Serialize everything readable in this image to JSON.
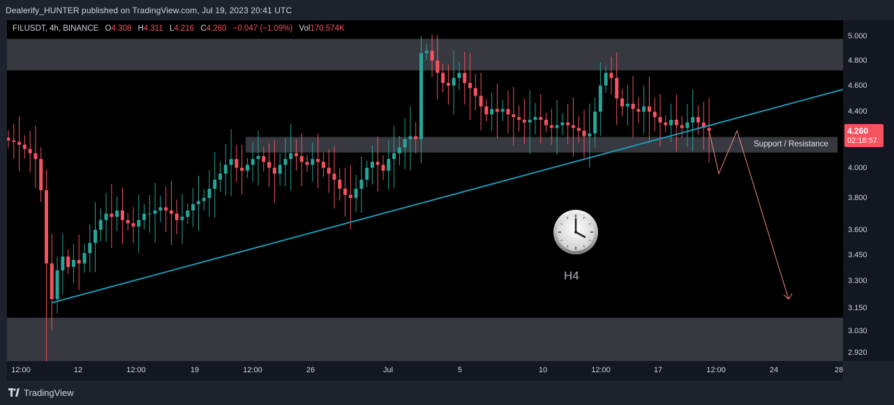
{
  "header": {
    "published": "Dealerify_HUNTER published on TradingView.com, Jul 19, 2023 20:41 UTC"
  },
  "legend": {
    "symbol": "FILUSDT, 4h, BINANCE",
    "o_label": "O",
    "o": "4.308",
    "h_label": "H",
    "h": "4.311",
    "l_label": "L",
    "l": "4.216",
    "c_label": "C",
    "c": "4.260",
    "change": "−0.047 (−1.09%)",
    "vol_label": "Vol",
    "vol": "170.574K"
  },
  "price_badge": {
    "price": "4.260",
    "countdown": "02:18:57"
  },
  "annotations": {
    "support_resistance": "Support / Resistance",
    "timeframe": "H4",
    "clock_icon": "alarm-clock-icon"
  },
  "footer": {
    "brand": "TradingView",
    "logo_icon": "tradingview-logo-icon"
  },
  "colors": {
    "up": "#26a69a",
    "down": "#f7525f",
    "trendline": "#1e98b5",
    "zone": "#4a4c55",
    "projection": "#f28b82"
  },
  "chart_data": {
    "type": "candlestick",
    "symbol": "FILUSDT",
    "interval": "4h",
    "exchange": "BINANCE",
    "y_scale": "log",
    "ylim": [
      2.88,
      5.14
    ],
    "y_ticks": [
      "5.000",
      "4.800",
      "4.600",
      "4.400",
      "4.200",
      "4.000",
      "3.800",
      "3.600",
      "3.450",
      "3.300",
      "3.150",
      "3.030",
      "2.920"
    ],
    "x_ticks": [
      "12:00",
      "12",
      "12:00",
      "19",
      "12:00",
      "26",
      "Jul",
      "5",
      "10",
      "12:00",
      "17",
      "12:00",
      "24",
      "28"
    ],
    "last_price": 4.26,
    "zones": [
      {
        "name": "upper-resistance-zone",
        "from": 4.72,
        "to": 4.98
      },
      {
        "name": "support-resistance-zone",
        "from": 4.105,
        "to": 4.215,
        "label": "Support / Resistance"
      },
      {
        "name": "lower-support-zone",
        "from": 2.88,
        "to": 3.1
      }
    ],
    "trendline": {
      "from_price": 3.18,
      "to_price": 4.57
    },
    "projection_path": [
      4.26,
      3.96,
      4.26,
      3.2
    ],
    "series_closes": [
      4.19,
      4.18,
      4.16,
      4.13,
      4.1,
      4.06,
      3.85,
      3.4,
      3.2,
      3.36,
      3.44,
      3.38,
      3.42,
      3.4,
      3.46,
      3.52,
      3.6,
      3.66,
      3.7,
      3.68,
      3.72,
      3.66,
      3.64,
      3.62,
      3.66,
      3.7,
      3.7,
      3.72,
      3.74,
      3.72,
      3.7,
      3.66,
      3.68,
      3.72,
      3.76,
      3.78,
      3.8,
      3.86,
      3.92,
      3.96,
      4.02,
      4.06,
      4.0,
      3.98,
      4.02,
      4.06,
      4.08,
      4.04,
      4.0,
      3.96,
      4.02,
      4.06,
      4.1,
      4.08,
      4.04,
      4.02,
      4.06,
      4.04,
      4.0,
      3.96,
      3.92,
      3.86,
      3.82,
      3.8,
      3.86,
      3.92,
      4.0,
      4.04,
      4.02,
      3.98,
      4.06,
      4.1,
      4.14,
      4.2,
      4.22,
      4.2,
      4.86,
      4.88,
      4.8,
      4.7,
      4.62,
      4.6,
      4.66,
      4.7,
      4.62,
      4.58,
      4.52,
      4.44,
      4.38,
      4.42,
      4.4,
      4.42,
      4.38,
      4.36,
      4.34,
      4.32,
      4.34,
      4.36,
      4.34,
      4.3,
      4.28,
      4.3,
      4.32,
      4.3,
      4.28,
      4.26,
      4.22,
      4.24,
      4.4,
      4.6,
      4.7,
      4.66,
      4.5,
      4.44,
      4.46,
      4.42,
      4.4,
      4.44,
      4.4,
      4.36,
      4.32,
      4.3,
      4.34,
      4.3,
      4.28,
      4.32,
      4.36,
      4.32,
      4.28,
      4.26
    ]
  }
}
